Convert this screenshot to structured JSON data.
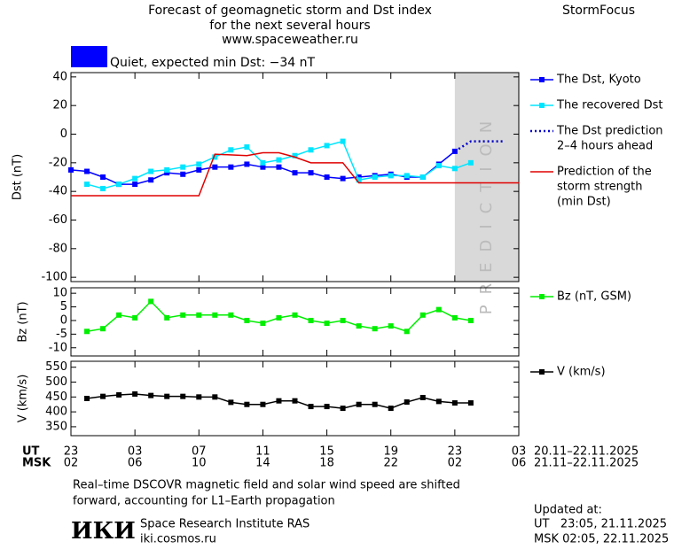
{
  "header": {
    "title_lines": [
      "Forecast of geomagnetic storm and Dst index",
      "for the next several hours",
      "www.spaceweather.ru"
    ],
    "brand": "StormFocus",
    "status": "Quiet, expected min Dst: −34 nT",
    "status_color": "#0000ff"
  },
  "chart_data": [
    {
      "type": "line",
      "y_label": "Dst (nT)",
      "ylim": [
        -103,
        43
      ],
      "xlim": [
        23,
        51
      ],
      "yticks": [
        40,
        20,
        0,
        -20,
        -40,
        -60,
        -80,
        -100
      ],
      "shaded_region": {
        "from": 47,
        "to": 51,
        "label": "PREDICTION",
        "color": "#d9d9d9"
      },
      "series": [
        {
          "name": [
            "The Dst, Kyoto"
          ],
          "color": "#0000ff",
          "marker": "square",
          "dash": "solid",
          "x": [
            23,
            24,
            25,
            26,
            27,
            28,
            29,
            30,
            31,
            32,
            33,
            34,
            35,
            36,
            37,
            38,
            39,
            40,
            41,
            42,
            43,
            44,
            45,
            46,
            47
          ],
          "values": [
            -25,
            -26,
            -30,
            -35,
            -35,
            -32,
            -27,
            -28,
            -25,
            -23,
            -23,
            -21,
            -23,
            -23,
            -27,
            -27,
            -30,
            -31,
            -30,
            -29,
            -28,
            -30,
            -30,
            -21,
            -12
          ]
        },
        {
          "name": [
            "The recovered Dst"
          ],
          "color": "#00e5ff",
          "marker": "square",
          "dash": "solid",
          "x": [
            24,
            25,
            26,
            27,
            28,
            29,
            30,
            31,
            32,
            33,
            34,
            35,
            36,
            37,
            38,
            39,
            40,
            41,
            42,
            43,
            44,
            45,
            46,
            47,
            48
          ],
          "values": [
            -35,
            -38,
            -35,
            -31,
            -26,
            -25,
            -23,
            -21,
            -16,
            -11,
            -9,
            -20,
            -18,
            -15,
            -11,
            -8,
            -5,
            -32,
            -30,
            -29,
            -29,
            -30,
            -22,
            -24,
            -20
          ]
        },
        {
          "name": [
            "The Dst prediction",
            "2–4 hours ahead"
          ],
          "color": "#0000cc",
          "marker": "none",
          "dash": "dotted",
          "x": [
            47,
            48,
            49,
            50
          ],
          "values": [
            -12,
            -5,
            -5,
            -5
          ]
        },
        {
          "name": [
            "Prediction of the",
            "storm strength",
            "(min Dst)"
          ],
          "color": "#e00000",
          "marker": "none",
          "dash": "solid",
          "x": [
            23,
            31,
            32,
            34,
            35,
            36,
            37,
            38,
            40,
            41,
            51
          ],
          "values": [
            -43,
            -43,
            -14,
            -15,
            -13,
            -13,
            -16,
            -20,
            -20,
            -34,
            -34
          ]
        }
      ]
    },
    {
      "type": "line",
      "y_label": "Bz (nT)",
      "ylim": [
        -13,
        12
      ],
      "xlim": [
        23,
        51
      ],
      "yticks": [
        10,
        5,
        0,
        -5,
        -10
      ],
      "series": [
        {
          "name": [
            "Bz (nT, GSM)"
          ],
          "color": "#00ee00",
          "marker": "square",
          "dash": "solid",
          "x": [
            24,
            25,
            26,
            27,
            28,
            29,
            30,
            31,
            32,
            33,
            34,
            35,
            36,
            37,
            38,
            39,
            40,
            41,
            42,
            43,
            44,
            45,
            46,
            47,
            48
          ],
          "values": [
            -4,
            -3,
            2,
            1,
            7,
            1,
            2,
            2,
            2,
            2,
            0,
            -1,
            1,
            2,
            0,
            -1,
            0,
            -2,
            -3,
            -2,
            -4,
            2,
            4,
            1,
            0
          ]
        }
      ]
    },
    {
      "type": "line",
      "y_label": "V (km/s)",
      "ylim": [
        320,
        570
      ],
      "xlim": [
        23,
        51
      ],
      "yticks": [
        550,
        500,
        450,
        400,
        350
      ],
      "x_label_ut": "UT",
      "x_label_msk": "MSK",
      "date_range_ut": "20.11–22.11.2025",
      "date_range_msk": "21.11–22.11.2025",
      "xticks": [
        {
          "value": 23,
          "label": "23"
        },
        {
          "value": 27,
          "label": "03"
        },
        {
          "value": 31,
          "label": "07"
        },
        {
          "value": 35,
          "label": "11"
        },
        {
          "value": 39,
          "label": "15"
        },
        {
          "value": 43,
          "label": "19"
        },
        {
          "value": 47,
          "label": "23"
        },
        {
          "value": 51,
          "label": "03"
        }
      ],
      "xticks_msk": [
        {
          "value": 23,
          "label": "02"
        },
        {
          "value": 27,
          "label": "06"
        },
        {
          "value": 31,
          "label": "10"
        },
        {
          "value": 35,
          "label": "14"
        },
        {
          "value": 39,
          "label": "18"
        },
        {
          "value": 43,
          "label": "22"
        },
        {
          "value": 47,
          "label": "02"
        },
        {
          "value": 51,
          "label": "06"
        }
      ],
      "series": [
        {
          "name": [
            "V (km/s)"
          ],
          "color": "#000000",
          "marker": "square",
          "dash": "solid",
          "x": [
            24,
            25,
            26,
            27,
            28,
            29,
            30,
            31,
            32,
            33,
            34,
            35,
            36,
            37,
            38,
            39,
            40,
            41,
            42,
            43,
            44,
            45,
            46,
            47,
            48
          ],
          "values": [
            445,
            452,
            457,
            460,
            455,
            452,
            452,
            450,
            450,
            432,
            425,
            425,
            437,
            437,
            418,
            418,
            412,
            425,
            425,
            412,
            433,
            448,
            435,
            430,
            430
          ]
        }
      ]
    }
  ],
  "footer": {
    "note_lines": [
      "Real–time DSCOVR magnetic field and solar wind speed are shifted",
      "forward, accounting for L1–Earth propagation"
    ],
    "logo": "ИКИ",
    "institute": "Space Research Institute RAS",
    "url": "iki.cosmos.ru",
    "updated_label": "Updated at:",
    "updated_ut": "UT   23:05, 21.11.2025",
    "updated_msk": "MSK 02:05, 22.11.2025"
  }
}
